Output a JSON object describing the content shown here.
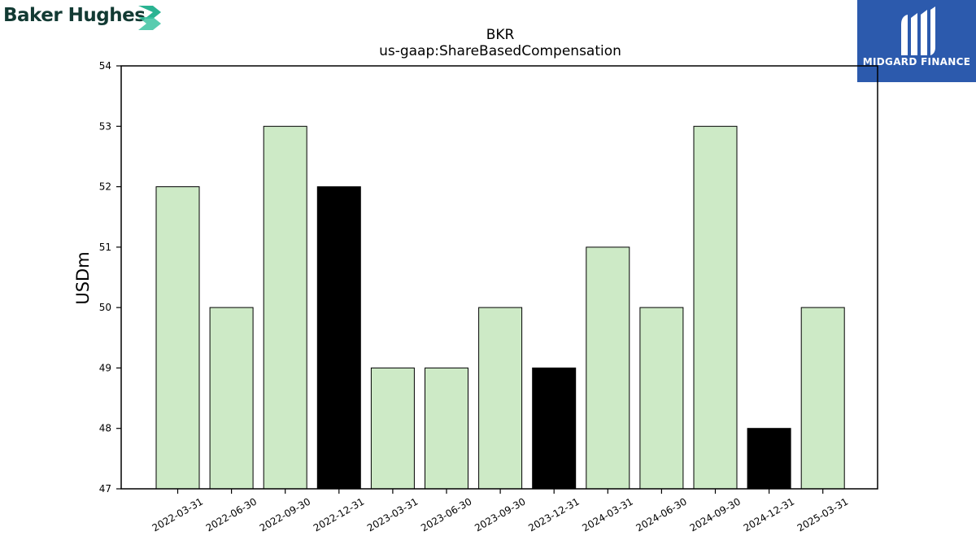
{
  "logos": {
    "left": {
      "text": "Baker Hughes",
      "icon": "baker-hughes-chevron-icon",
      "color": "#123a33",
      "accent": "#2bb392"
    },
    "right": {
      "text": "MIDGARD FINANCE",
      "icon": "midgard-m-icon",
      "background": "#2c5aad"
    }
  },
  "chart_data": {
    "type": "bar",
    "title": "BKR",
    "subtitle": "us-gaap:ShareBasedCompensation",
    "xlabel": "",
    "ylabel": "USDm",
    "ylim": [
      47,
      54
    ],
    "yticks": [
      47,
      48,
      49,
      50,
      51,
      52,
      53,
      54
    ],
    "categories": [
      "2022-03-31",
      "2022-06-30",
      "2022-09-30",
      "2022-12-31",
      "2023-03-31",
      "2023-06-30",
      "2023-09-30",
      "2023-12-31",
      "2024-03-31",
      "2024-06-30",
      "2024-09-30",
      "2024-12-31",
      "2025-03-31"
    ],
    "values": [
      52,
      50,
      53,
      52,
      49,
      49,
      50,
      49,
      51,
      50,
      53,
      48,
      50
    ],
    "highlight": [
      false,
      false,
      false,
      true,
      false,
      false,
      false,
      true,
      false,
      false,
      false,
      true,
      false
    ],
    "colors": {
      "bar": "#cdeac6",
      "highlight": "#000000",
      "edge": "#000000"
    },
    "grid": false,
    "legend": "none"
  }
}
